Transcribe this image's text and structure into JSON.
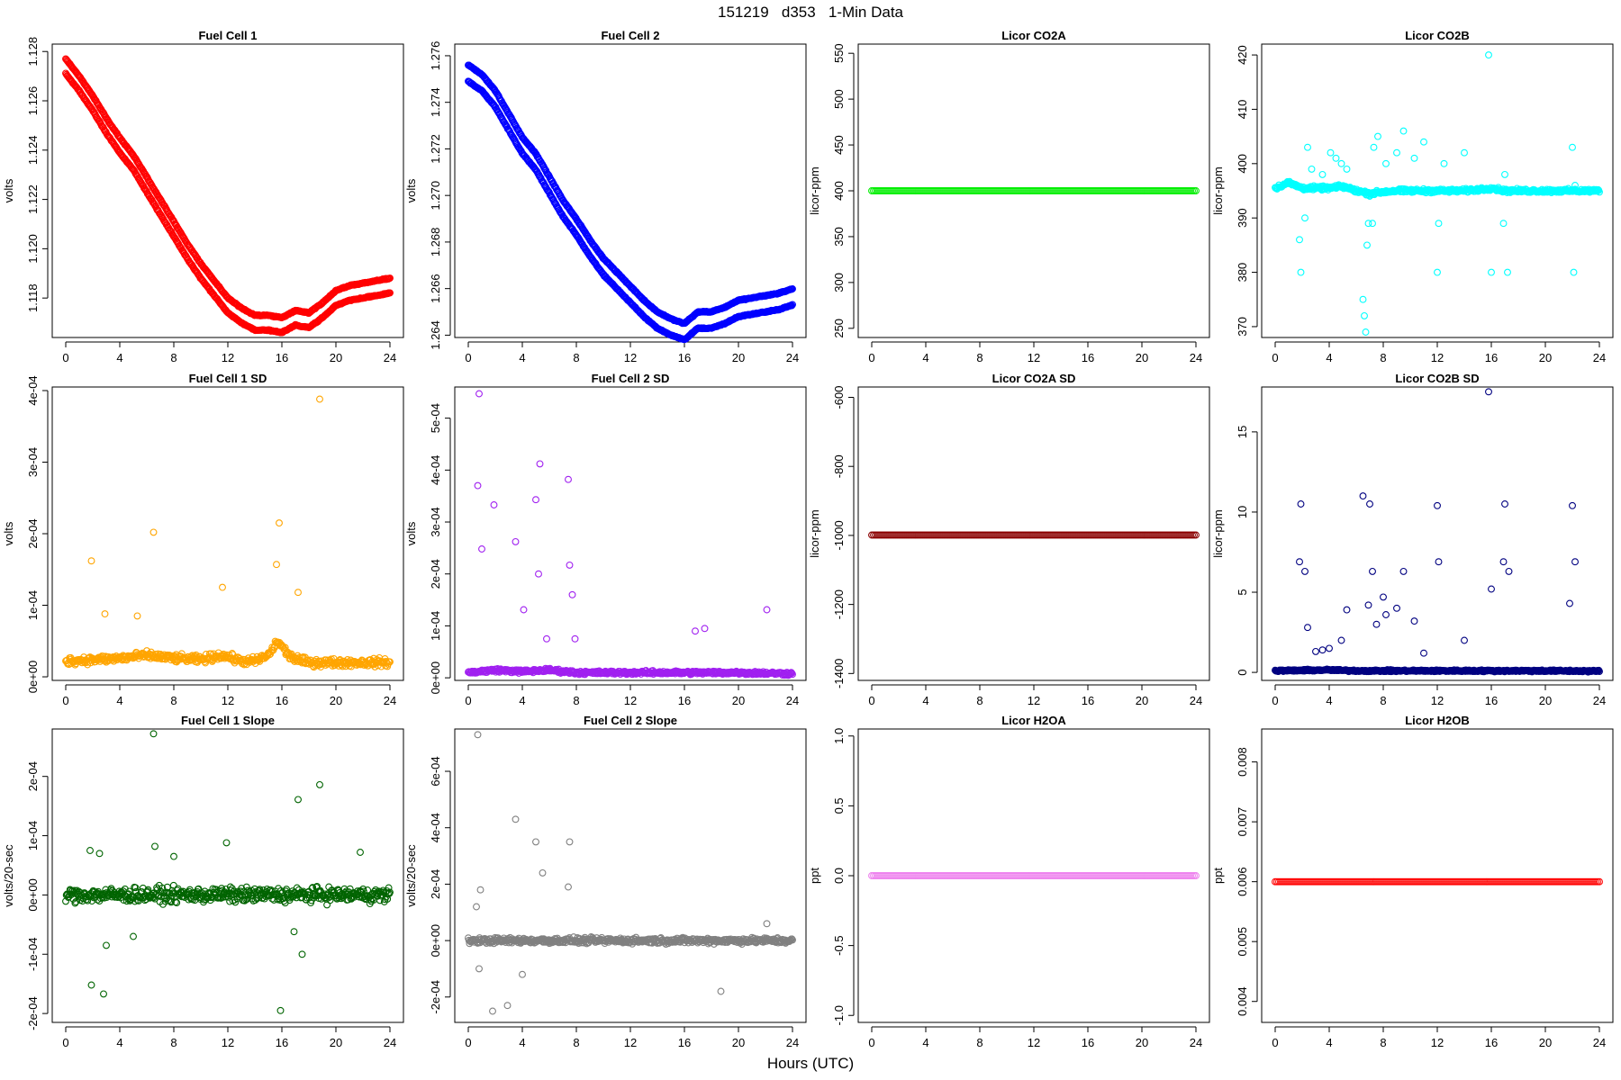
{
  "page": {
    "title": "151219   d353   1-Min Data",
    "xlabel": "Hours (UTC)"
  },
  "chart_data": [
    {
      "type": "scatter",
      "title": "Fuel Cell 1",
      "ylabel": "volts",
      "color": "#ff0000",
      "xlim": [
        -1,
        25
      ],
      "ylim": [
        1.1164,
        1.1283
      ],
      "xticks": [
        0,
        4,
        8,
        12,
        16,
        20,
        24
      ],
      "yticks": [
        1.118,
        1.12,
        1.122,
        1.124,
        1.126,
        1.128
      ],
      "ytick_labels": [
        "1.118",
        "1.120",
        "1.122",
        "1.124",
        "1.126",
        "1.128"
      ],
      "series": [
        {
          "shape": "band",
          "x": [
            0,
            1,
            2,
            3,
            4,
            5,
            6,
            7,
            8,
            9,
            10,
            11,
            12,
            13,
            14,
            15,
            16,
            17,
            18,
            19,
            20,
            21,
            22,
            23,
            24
          ],
          "values": [
            1.1277,
            1.127,
            1.1262,
            1.1253,
            1.1245,
            1.1238,
            1.1229,
            1.122,
            1.1211,
            1.1202,
            1.1194,
            1.1187,
            1.118,
            1.1176,
            1.1173,
            1.1173,
            1.1172,
            1.1175,
            1.1174,
            1.1178,
            1.1183,
            1.1185,
            1.1186,
            1.1187,
            1.1188
          ],
          "offset": -0.0006
        }
      ]
    },
    {
      "type": "scatter",
      "title": "Fuel Cell 2",
      "ylabel": "volts",
      "color": "#0000ff",
      "xlim": [
        -1,
        25
      ],
      "ylim": [
        1.2639,
        1.2765
      ],
      "xticks": [
        0,
        4,
        8,
        12,
        16,
        20,
        24
      ],
      "yticks": [
        1.264,
        1.266,
        1.268,
        1.27,
        1.272,
        1.274,
        1.276
      ],
      "ytick_labels": [
        "1.264",
        "1.266",
        "1.268",
        "1.270",
        "1.272",
        "1.274",
        "1.276"
      ],
      "series": [
        {
          "shape": "band",
          "x": [
            0,
            1,
            2,
            3,
            4,
            5,
            6,
            7,
            8,
            9,
            10,
            11,
            12,
            13,
            14,
            15,
            16,
            17,
            18,
            19,
            20,
            21,
            22,
            23,
            24
          ],
          "values": [
            1.2756,
            1.2752,
            1.2745,
            1.2735,
            1.2725,
            1.2718,
            1.2708,
            1.2698,
            1.269,
            1.2681,
            1.2673,
            1.2667,
            1.2661,
            1.2655,
            1.265,
            1.2647,
            1.2645,
            1.265,
            1.265,
            1.2652,
            1.2655,
            1.2656,
            1.2657,
            1.2658,
            1.266
          ],
          "offset": -0.0007
        }
      ]
    },
    {
      "type": "scatter",
      "title": "Licor CO2A",
      "ylabel": "licor-ppm",
      "color": "#00ee00",
      "xlim": [
        -1,
        25
      ],
      "ylim": [
        240,
        560
      ],
      "xticks": [
        0,
        4,
        8,
        12,
        16,
        20,
        24
      ],
      "yticks": [
        250,
        300,
        350,
        400,
        450,
        500,
        550
      ],
      "ytick_labels": [
        "250",
        "300",
        "350",
        "400",
        "450",
        "500",
        "550"
      ],
      "series": [
        {
          "shape": "flat",
          "x": [
            0,
            24
          ],
          "values": [
            400,
            400
          ]
        }
      ]
    },
    {
      "type": "scatter",
      "title": "Licor CO2B",
      "ylabel": "licor-ppm",
      "color": "#00ffff",
      "xlim": [
        -1,
        25
      ],
      "ylim": [
        368,
        422
      ],
      "xticks": [
        0,
        4,
        8,
        12,
        16,
        20,
        24
      ],
      "yticks": [
        370,
        380,
        390,
        400,
        410,
        420
      ],
      "ytick_labels": [
        "370",
        "380",
        "390",
        "400",
        "410",
        "420"
      ],
      "series": [
        {
          "shape": "noise",
          "x": [
            0,
            1,
            2,
            3,
            4,
            5,
            6,
            7,
            8,
            9,
            10,
            11,
            12,
            13,
            14,
            15,
            16,
            17,
            18,
            19,
            20,
            21,
            22,
            23,
            24
          ],
          "values": [
            395.5,
            396.5,
            395.5,
            395.5,
            395.5,
            395.8,
            395.0,
            394.5,
            394.8,
            395.0,
            395.0,
            395.0,
            395.0,
            395.0,
            395.0,
            395.2,
            395.5,
            395.0,
            395.0,
            395.0,
            395.0,
            395.0,
            395.0,
            395.0,
            395.0
          ],
          "spread": 0.5
        },
        {
          "shape": "points",
          "x": [
            1.8,
            1.9,
            2.2,
            2.4,
            2.7,
            3.5,
            4.1,
            4.5,
            4.9,
            5.3,
            6.5,
            6.6,
            6.7,
            6.8,
            6.9,
            7.0,
            7.2,
            7.3,
            7.6,
            8.2,
            9.0,
            9.5,
            10.3,
            11.0,
            12.0,
            12.1,
            12.5,
            14.0,
            15.8,
            16.0,
            16.9,
            17.0,
            17.2,
            22.0,
            22.1,
            22.2
          ],
          "values": [
            386,
            380,
            390,
            403,
            399,
            398,
            402,
            401,
            400,
            399,
            375,
            372,
            369,
            385,
            389,
            394,
            389,
            403,
            405,
            400,
            402,
            406,
            401,
            404,
            380,
            389,
            400,
            402,
            420,
            380,
            389,
            398,
            380,
            403,
            380,
            396
          ]
        }
      ]
    },
    {
      "type": "scatter",
      "title": "Fuel Cell 1 SD",
      "ylabel": "volts",
      "color": "#ffa500",
      "xlim": [
        -1,
        25
      ],
      "ylim": [
        -5e-06,
        0.000405
      ],
      "xticks": [
        0,
        4,
        8,
        12,
        16,
        20,
        24
      ],
      "yticks": [
        0,
        0.0001,
        0.0002,
        0.0003,
        0.0004
      ],
      "ytick_labels": [
        "0e+00",
        "1e-04",
        "2e-04",
        "3e-04",
        "4e-04"
      ],
      "series": [
        {
          "shape": "noise",
          "x": [
            0,
            2,
            4,
            6,
            8,
            10,
            11.5,
            12,
            13,
            14,
            15,
            15.7,
            16.5,
            17,
            18,
            20,
            22,
            24
          ],
          "values": [
            2.2e-05,
            2.4e-05,
            2.6e-05,
            3e-05,
            2.6e-05,
            2.4e-05,
            3e-05,
            2.8e-05,
            2.2e-05,
            2.2e-05,
            3e-05,
            5e-05,
            3e-05,
            2.5e-05,
            2e-05,
            2e-05,
            2e-05,
            2e-05
          ],
          "spread": 8e-06
        },
        {
          "shape": "points",
          "x": [
            1.9,
            2.9,
            5.3,
            6.5,
            11.6,
            15.8,
            15.6,
            17.2,
            18.8
          ],
          "values": [
            0.000162,
            8.8e-05,
            8.5e-05,
            0.000202,
            0.000125,
            0.000215,
            0.000157,
            0.000118,
            0.000388
          ]
        }
      ]
    },
    {
      "type": "scatter",
      "title": "Fuel Cell 2 SD",
      "ylabel": "volts",
      "color": "#a020f0",
      "xlim": [
        -1,
        25
      ],
      "ylim": [
        -5e-06,
        0.00056
      ],
      "xticks": [
        0,
        4,
        8,
        12,
        16,
        20,
        24
      ],
      "yticks": [
        0,
        0.0001,
        0.0002,
        0.0003,
        0.0004,
        0.0005
      ],
      "ytick_labels": [
        "0e+00",
        "1e-04",
        "2e-04",
        "3e-04",
        "4e-04",
        "5e-04"
      ],
      "series": [
        {
          "shape": "noise",
          "x": [
            0,
            2,
            4,
            6,
            8,
            12,
            16,
            20,
            24
          ],
          "values": [
            1e-05,
            1.5e-05,
            1.2e-05,
            1.5e-05,
            1e-05,
            1e-05,
            1e-05,
            1e-05,
            8e-06
          ],
          "spread": 5e-06
        },
        {
          "shape": "points",
          "x": [
            0.8,
            0.7,
            1.0,
            1.9,
            3.5,
            4.1,
            5.0,
            5.3,
            5.2,
            7.4,
            7.5,
            7.7,
            5.8,
            7.9,
            16.8,
            17.5,
            22.1
          ],
          "values": [
            0.000547,
            0.00037,
            0.000248,
            0.000333,
            0.000262,
            0.000131,
            0.000343,
            0.000412,
            0.0002,
            0.000382,
            0.000217,
            0.00016,
            7.5e-05,
            7.5e-05,
            9e-05,
            9.5e-05,
            0.000131
          ]
        }
      ]
    },
    {
      "type": "scatter",
      "title": "Licor CO2A SD",
      "ylabel": "licor-ppm",
      "color": "#8b0000",
      "xlim": [
        -1,
        25
      ],
      "ylim": [
        -1420,
        -570
      ],
      "xticks": [
        0,
        4,
        8,
        12,
        16,
        20,
        24
      ],
      "yticks": [
        -1400,
        -1200,
        -1000,
        -800,
        -600
      ],
      "ytick_labels": [
        "-1400",
        "-1200",
        "-1000",
        "-800",
        "-600"
      ],
      "series": [
        {
          "shape": "flat",
          "x": [
            0,
            24
          ],
          "values": [
            -999,
            -999
          ]
        }
      ]
    },
    {
      "type": "scatter",
      "title": "Licor CO2B SD",
      "ylabel": "licor-ppm",
      "color": "#000080",
      "xlim": [
        -1,
        25
      ],
      "ylim": [
        -0.5,
        17.8
      ],
      "xticks": [
        0,
        4,
        8,
        12,
        16,
        20,
        24
      ],
      "yticks": [
        0,
        5,
        10,
        15
      ],
      "ytick_labels": [
        "0",
        "5",
        "10",
        "15"
      ],
      "series": [
        {
          "shape": "noise",
          "x": [
            0,
            4,
            6,
            8,
            12,
            16,
            20,
            24
          ],
          "values": [
            0.1,
            0.15,
            0.1,
            0.1,
            0.1,
            0.1,
            0.1,
            0.08
          ],
          "spread": 0.08
        },
        {
          "shape": "points",
          "x": [
            1.8,
            1.9,
            2.2,
            2.4,
            3.0,
            3.5,
            4.0,
            4.9,
            5.3,
            6.5,
            6.9,
            7.0,
            7.2,
            7.5,
            8.0,
            8.2,
            9.0,
            9.5,
            10.3,
            11.0,
            12.0,
            12.1,
            14.0,
            15.8,
            16.0,
            16.9,
            17.0,
            17.3,
            21.8,
            22.0,
            22.2
          ],
          "values": [
            6.9,
            10.5,
            6.3,
            2.8,
            1.3,
            1.4,
            1.5,
            2.0,
            3.9,
            11.0,
            4.2,
            10.5,
            6.3,
            3.0,
            4.7,
            3.6,
            4.0,
            6.3,
            3.2,
            1.2,
            10.4,
            6.9,
            2.0,
            17.5,
            5.2,
            6.9,
            10.5,
            6.3,
            4.3,
            10.4,
            6.9
          ]
        }
      ]
    },
    {
      "type": "scatter",
      "title": "Fuel Cell 1 Slope",
      "ylabel": "volts/20-sec",
      "color": "#006400",
      "xlim": [
        -1,
        25
      ],
      "ylim": [
        -0.000215,
        0.00028
      ],
      "xticks": [
        0,
        4,
        8,
        12,
        16,
        20,
        24
      ],
      "yticks": [
        -0.0002,
        -0.0001,
        0,
        0.0001,
        0.0002
      ],
      "ytick_labels": [
        "-2e-04",
        "-1e-04",
        "0e+00",
        "1e-04",
        "2e-04"
      ],
      "series": [
        {
          "shape": "noise",
          "x": [
            0,
            24
          ],
          "values": [
            0,
            0
          ],
          "spread": 1.8e-05
        },
        {
          "shape": "points",
          "x": [
            1.8,
            1.9,
            2.8,
            6.5,
            15.9,
            17.2,
            18.8,
            17.5,
            16.9,
            11.9,
            21.8,
            6.6,
            3.0,
            2.5,
            8.0,
            5.0
          ],
          "values": [
            7.5e-05,
            -0.000152,
            -0.000167,
            0.000272,
            -0.000195,
            0.000161,
            0.000186,
            -0.0001,
            -6.2e-05,
            8.8e-05,
            7.2e-05,
            8.2e-05,
            -8.5e-05,
            7e-05,
            6.5e-05,
            -7e-05
          ]
        }
      ]
    },
    {
      "type": "scatter",
      "title": "Fuel Cell 2 Slope",
      "ylabel": "volts/20-sec",
      "color": "#808080",
      "xlim": [
        -1,
        25
      ],
      "ylim": [
        -0.00029,
        0.00075
      ],
      "xticks": [
        0,
        4,
        8,
        12,
        16,
        20,
        24
      ],
      "yticks": [
        -0.0002,
        0,
        0.0002,
        0.0004,
        0.0006
      ],
      "ytick_labels": [
        "-2e-04",
        "0e+00",
        "2e-04",
        "4e-04",
        "6e-04"
      ],
      "series": [
        {
          "shape": "noise",
          "x": [
            0,
            8,
            12,
            24
          ],
          "values": [
            0,
            0,
            0,
            0
          ],
          "spread": 1.5e-05
        },
        {
          "shape": "points",
          "x": [
            0.7,
            0.6,
            0.9,
            1.8,
            2.9,
            3.5,
            5.0,
            5.5,
            7.5,
            7.4,
            18.7,
            22.1,
            0.8,
            4.0
          ],
          "values": [
            0.00073,
            0.00012,
            0.00018,
            -0.00025,
            -0.00023,
            0.00043,
            0.00035,
            0.00024,
            0.00035,
            0.00019,
            -0.00018,
            6e-05,
            -0.0001,
            -0.00012
          ]
        }
      ]
    },
    {
      "type": "scatter",
      "title": "Licor H2OA",
      "ylabel": "ppt",
      "color": "#ee82ee",
      "xlim": [
        -1,
        25
      ],
      "ylim": [
        -1.05,
        1.05
      ],
      "xticks": [
        0,
        4,
        8,
        12,
        16,
        20,
        24
      ],
      "yticks": [
        -1.0,
        -0.5,
        0,
        0.5,
        1.0
      ],
      "ytick_labels": [
        "-1.0",
        "-0.5",
        "0.0",
        "0.5",
        "1.0"
      ],
      "series": [
        {
          "shape": "flat",
          "x": [
            0,
            24
          ],
          "values": [
            0,
            0
          ]
        }
      ]
    },
    {
      "type": "scatter",
      "title": "Licor H2OB",
      "ylabel": "ppt",
      "color": "#ff0000",
      "xlim": [
        -1,
        25
      ],
      "ylim": [
        0.00365,
        0.00855
      ],
      "xticks": [
        0,
        4,
        8,
        12,
        16,
        20,
        24
      ],
      "yticks": [
        0.004,
        0.005,
        0.006,
        0.007,
        0.008
      ],
      "ytick_labels": [
        "0.004",
        "0.005",
        "0.006",
        "0.007",
        "0.008"
      ],
      "series": [
        {
          "shape": "flat",
          "x": [
            0,
            24
          ],
          "values": [
            0.006,
            0.006
          ]
        }
      ]
    }
  ]
}
